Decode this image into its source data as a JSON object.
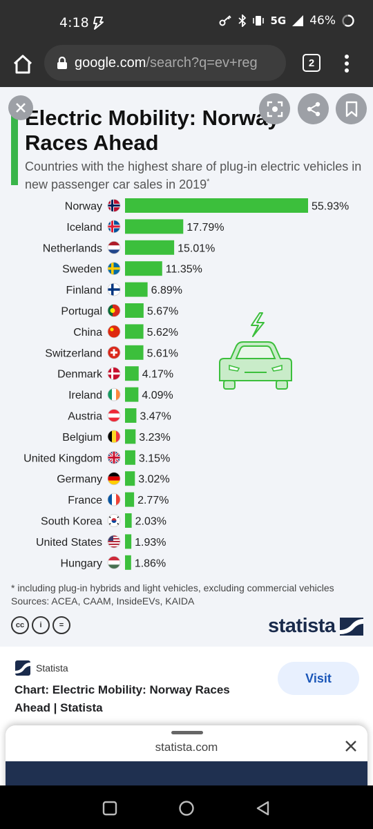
{
  "status_bar": {
    "time": "4:18",
    "network": "5G",
    "battery": "46%"
  },
  "browser": {
    "url_host": "google.com",
    "url_path": "/search?q=ev+reg",
    "tab_count": "2"
  },
  "chart_card": {
    "title": "Electric Mobility: Norway Races Ahead",
    "subtitle": "Countries with the highest share of plug-in electric vehicles in new passenger car sales in 2019",
    "subtitle_mark": "*",
    "footnote": "* including plug-in hybrids and light vehicles, excluding commercial vehicles",
    "sources": "Sources: ACEA, CAAM, InsideEVs, KAIDA",
    "cc_badges": [
      "cc",
      "i",
      "="
    ],
    "brand": "statista",
    "accent_color": "#3cbf3c"
  },
  "chart_data": {
    "type": "bar",
    "orientation": "horizontal",
    "categories": [
      "Norway",
      "Iceland",
      "Netherlands",
      "Sweden",
      "Finland",
      "Portugal",
      "China",
      "Switzerland",
      "Denmark",
      "Ireland",
      "Austria",
      "Belgium",
      "United Kingdom",
      "Germany",
      "France",
      "South Korea",
      "United States",
      "Hungary"
    ],
    "values": [
      55.93,
      17.79,
      15.01,
      11.35,
      6.89,
      5.67,
      5.62,
      5.61,
      4.17,
      4.09,
      3.47,
      3.23,
      3.15,
      3.02,
      2.77,
      2.03,
      1.93,
      1.86
    ],
    "value_labels": [
      "55.93%",
      "17.79%",
      "15.01%",
      "11.35%",
      "6.89%",
      "5.67%",
      "5.62%",
      "5.61%",
      "4.17%",
      "4.09%",
      "3.47%",
      "3.23%",
      "3.15%",
      "3.02%",
      "2.77%",
      "2.03%",
      "1.93%",
      "1.86%"
    ],
    "title": "Electric Mobility: Norway Races Ahead",
    "xlabel": "",
    "ylabel": "",
    "xlim": [
      0,
      56
    ],
    "grid": false,
    "bar_color": "#3cbf3c"
  },
  "result": {
    "source_name": "Statista",
    "title": "Chart: Electric Mobility: Norway Races Ahead | Statista",
    "visit_label": "Visit"
  },
  "bottom_sheet": {
    "domain": "statista.com"
  },
  "icons": [
    "home-icon",
    "lock-icon",
    "tabs-icon",
    "more-vert-icon",
    "close-icon",
    "lens-icon",
    "share-icon",
    "bookmark-icon",
    "ev-car-icon",
    "back-icon",
    "home-circle-icon",
    "recents-icon"
  ]
}
